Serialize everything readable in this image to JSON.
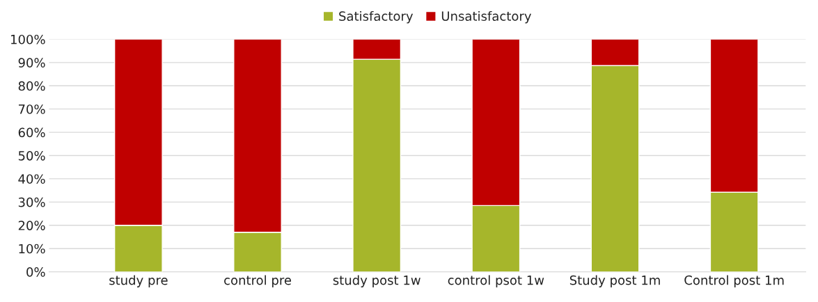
{
  "chart_data": {
    "type": "bar",
    "stacked": true,
    "categories": [
      "study pre",
      "control pre",
      "study post 1w",
      "control psot 1w",
      "Study post 1m",
      "Control post 1m"
    ],
    "series": [
      {
        "name": "Satisfactory",
        "color": "#a6b62b",
        "values": [
          20,
          17,
          91.4,
          28.5,
          88.7,
          34.2
        ]
      },
      {
        "name": "Unsatisfactory",
        "color": "#c00000",
        "values": [
          80,
          83,
          8.6,
          71.5,
          11.3,
          65.8
        ]
      }
    ],
    "ylim": [
      0,
      100
    ],
    "yticks": [
      {
        "value": 0,
        "label": "0%"
      },
      {
        "value": 10,
        "label": "10%"
      },
      {
        "value": 20,
        "label": "20%"
      },
      {
        "value": 30,
        "label": "30%"
      },
      {
        "value": 40,
        "label": "40%"
      },
      {
        "value": 50,
        "label": "50%"
      },
      {
        "value": 60,
        "label": "60%"
      },
      {
        "value": 70,
        "label": "70%"
      },
      {
        "value": 80,
        "label": "80%"
      },
      {
        "value": 90,
        "label": "90%"
      },
      {
        "value": 100,
        "label": "100%"
      }
    ],
    "grid": "y",
    "legend": "top"
  }
}
